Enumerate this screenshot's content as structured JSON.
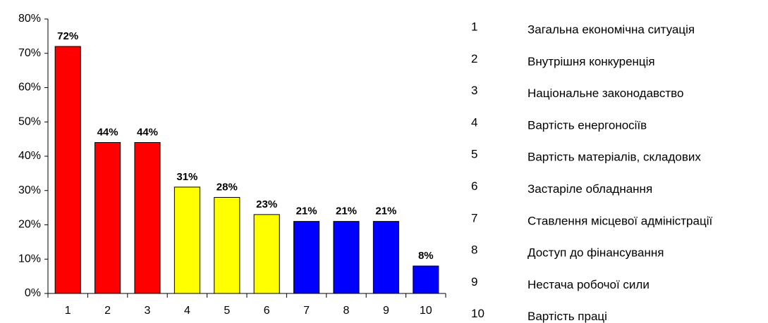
{
  "chart_data": {
    "type": "bar",
    "categories": [
      "1",
      "2",
      "3",
      "4",
      "5",
      "6",
      "7",
      "8",
      "9",
      "10"
    ],
    "values": [
      72,
      44,
      44,
      31,
      28,
      23,
      21,
      21,
      21,
      8
    ],
    "value_labels": [
      "72%",
      "44%",
      "44%",
      "31%",
      "28%",
      "23%",
      "21%",
      "21%",
      "21%",
      "8%"
    ],
    "colors": [
      "#ff0000",
      "#ff0000",
      "#ff0000",
      "#ffff00",
      "#ffff00",
      "#ffff00",
      "#0000ff",
      "#0000ff",
      "#0000ff",
      "#0000ff"
    ],
    "descriptions": [
      "Загальна економічна ситуація",
      "Внутрішня конкуренція",
      "Національне законодавство",
      "Вартість енергоносіїв",
      "Вартість матеріалів, складових",
      "Застаріле обладнання",
      "Ставлення місцевої адміністрації",
      "Доступ до фінансування",
      "Нестача робочої сили",
      "Вартість праці"
    ],
    "ylim": [
      0,
      80
    ],
    "yticks": [
      {
        "value": 0,
        "label": "0%"
      },
      {
        "value": 10,
        "label": "10%"
      },
      {
        "value": 20,
        "label": "20%"
      },
      {
        "value": 30,
        "label": "30%"
      },
      {
        "value": 40,
        "label": "40%"
      },
      {
        "value": 50,
        "label": "50%"
      },
      {
        "value": 60,
        "label": "60%"
      },
      {
        "value": 70,
        "label": "70%"
      },
      {
        "value": 80,
        "label": "80%"
      }
    ],
    "grid": false
  }
}
